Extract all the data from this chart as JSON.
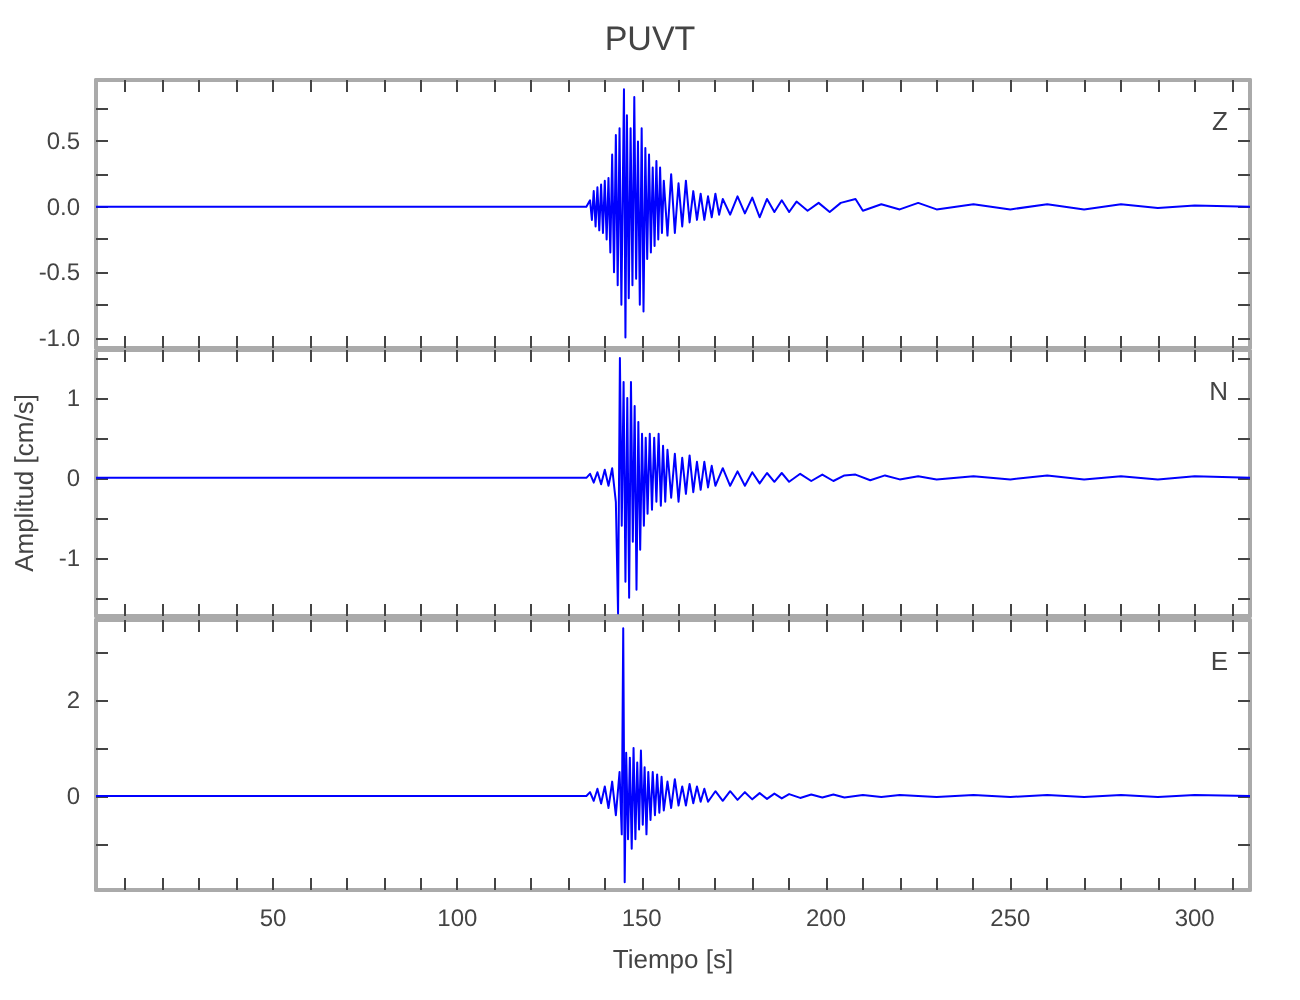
{
  "chart_data": [
    {
      "type": "line",
      "title": "PUVT",
      "annotations": [
        "Z"
      ],
      "marker": "none",
      "tick_labels": "y",
      "xlim": [
        2,
        315
      ],
      "ylim": [
        -1.08,
        0.97
      ],
      "xticks": [
        {
          "value": 10,
          "label": null
        },
        {
          "value": 20,
          "label": null
        },
        {
          "value": 30,
          "label": null
        },
        {
          "value": 40,
          "label": null
        },
        {
          "value": 50,
          "label": null
        },
        {
          "value": 60,
          "label": null
        },
        {
          "value": 70,
          "label": null
        },
        {
          "value": 80,
          "label": null
        },
        {
          "value": 90,
          "label": null
        },
        {
          "value": 100,
          "label": null
        },
        {
          "value": 110,
          "label": null
        },
        {
          "value": 120,
          "label": null
        },
        {
          "value": 130,
          "label": null
        },
        {
          "value": 140,
          "label": null
        },
        {
          "value": 150,
          "label": null
        },
        {
          "value": 160,
          "label": null
        },
        {
          "value": 170,
          "label": null
        },
        {
          "value": 180,
          "label": null
        },
        {
          "value": 190,
          "label": null
        },
        {
          "value": 200,
          "label": null
        },
        {
          "value": 210,
          "label": null
        },
        {
          "value": 220,
          "label": null
        },
        {
          "value": 230,
          "label": null
        },
        {
          "value": 240,
          "label": null
        },
        {
          "value": 250,
          "label": null
        },
        {
          "value": 260,
          "label": null
        },
        {
          "value": 270,
          "label": null
        },
        {
          "value": 280,
          "label": null
        },
        {
          "value": 290,
          "label": null
        },
        {
          "value": 300,
          "label": null
        },
        {
          "value": 310,
          "label": null
        }
      ],
      "yticks": [
        {
          "value": -1,
          "label": "-1.0"
        },
        {
          "value": -0.75,
          "label": null
        },
        {
          "value": -0.5,
          "label": "-0.5"
        },
        {
          "value": -0.25,
          "label": null
        },
        {
          "value": 0,
          "label": "0.0"
        },
        {
          "value": 0.25,
          "label": null
        },
        {
          "value": 0.5,
          "label": "0.5"
        },
        {
          "value": 0.75,
          "label": null
        }
      ],
      "series": [
        {
          "color": "#0000ff",
          "x": [
            2,
            100,
            135,
            136,
            136.5,
            137,
            137.5,
            138,
            138.5,
            139,
            139.5,
            140,
            140.5,
            141,
            141.5,
            142,
            142.5,
            143,
            143.5,
            144,
            144.5,
            145.2,
            145.6,
            146,
            146.5,
            147,
            147.5,
            148,
            148.5,
            149,
            149.5,
            150,
            150.5,
            151,
            151.5,
            152,
            152.5,
            153,
            153.5,
            154,
            154.5,
            155,
            155.5,
            156,
            157,
            158,
            159,
            160,
            161,
            162,
            163,
            164,
            165,
            166,
            167,
            168,
            169,
            170,
            171,
            172,
            174,
            176,
            178,
            180,
            182,
            184,
            186,
            188,
            190,
            192,
            195,
            198,
            201,
            204,
            208,
            210,
            215,
            220,
            225,
            230,
            240,
            250,
            260,
            270,
            280,
            290,
            300,
            315
          ],
          "values": [
            0,
            0,
            0,
            0.05,
            -0.1,
            0.12,
            -0.15,
            0.15,
            -0.18,
            0.17,
            -0.2,
            0.2,
            -0.25,
            0.22,
            -0.35,
            0.4,
            -0.5,
            0.55,
            -0.6,
            0.6,
            -0.75,
            0.9,
            -1.0,
            0.7,
            -0.7,
            0.6,
            -0.6,
            0.84,
            -0.55,
            0.5,
            -0.75,
            0.6,
            -0.8,
            0.45,
            -0.4,
            0.4,
            -0.35,
            0.3,
            -0.3,
            0.35,
            -0.25,
            0.3,
            -0.2,
            0.2,
            -0.22,
            0.25,
            -0.2,
            0.18,
            -0.15,
            0.2,
            -0.12,
            0.12,
            -0.1,
            0.1,
            -0.1,
            0.08,
            -0.08,
            0.1,
            -0.06,
            0.06,
            -0.06,
            0.08,
            -0.05,
            0.07,
            -0.08,
            0.06,
            -0.04,
            0.05,
            -0.04,
            0.04,
            -0.03,
            0.03,
            -0.04,
            0.03,
            0.06,
            -0.03,
            0.02,
            -0.02,
            0.03,
            -0.02,
            0.02,
            -0.02,
            0.02,
            -0.02,
            0.02,
            -0.01,
            0.01,
            0
          ]
        }
      ]
    },
    {
      "type": "line",
      "ylabel": "Amplitud [cm/s]",
      "annotations": [
        "N"
      ],
      "marker": "none",
      "tick_labels": "y",
      "xlim": [
        2,
        315
      ],
      "ylim": [
        -1.73,
        1.6
      ],
      "xticks": [
        {
          "value": 10,
          "label": null
        },
        {
          "value": 20,
          "label": null
        },
        {
          "value": 30,
          "label": null
        },
        {
          "value": 40,
          "label": null
        },
        {
          "value": 50,
          "label": null
        },
        {
          "value": 60,
          "label": null
        },
        {
          "value": 70,
          "label": null
        },
        {
          "value": 80,
          "label": null
        },
        {
          "value": 90,
          "label": null
        },
        {
          "value": 100,
          "label": null
        },
        {
          "value": 110,
          "label": null
        },
        {
          "value": 120,
          "label": null
        },
        {
          "value": 130,
          "label": null
        },
        {
          "value": 140,
          "label": null
        },
        {
          "value": 150,
          "label": null
        },
        {
          "value": 160,
          "label": null
        },
        {
          "value": 170,
          "label": null
        },
        {
          "value": 180,
          "label": null
        },
        {
          "value": 190,
          "label": null
        },
        {
          "value": 200,
          "label": null
        },
        {
          "value": 210,
          "label": null
        },
        {
          "value": 220,
          "label": null
        },
        {
          "value": 230,
          "label": null
        },
        {
          "value": 240,
          "label": null
        },
        {
          "value": 250,
          "label": null
        },
        {
          "value": 260,
          "label": null
        },
        {
          "value": 270,
          "label": null
        },
        {
          "value": 280,
          "label": null
        },
        {
          "value": 290,
          "label": null
        },
        {
          "value": 300,
          "label": null
        },
        {
          "value": 310,
          "label": null
        }
      ],
      "yticks": [
        {
          "value": -1.5,
          "label": null
        },
        -1,
        {
          "value": -0.5,
          "label": null
        },
        0,
        {
          "value": 0.5,
          "label": null
        },
        1,
        {
          "value": 1.5,
          "label": null
        }
      ],
      "series": [
        {
          "color": "#0000ff",
          "x": [
            2,
            100,
            135,
            136,
            137,
            138,
            139,
            140,
            141,
            142,
            143,
            143.6,
            144.1,
            144.6,
            145.1,
            145.6,
            146.1,
            146.6,
            147.1,
            147.6,
            148.1,
            148.6,
            149.1,
            149.6,
            150.1,
            150.6,
            151.1,
            151.6,
            152.2,
            152.8,
            153.4,
            154,
            154.6,
            155.2,
            155.8,
            156.4,
            157,
            158,
            159,
            160,
            161,
            162,
            163,
            164,
            165,
            166,
            167,
            168,
            169,
            170,
            172,
            174,
            176,
            178,
            180,
            182,
            184,
            186,
            188,
            190,
            193,
            196,
            199,
            202,
            205,
            208,
            212,
            216,
            220,
            225,
            230,
            240,
            250,
            260,
            270,
            280,
            290,
            300,
            315
          ],
          "values": [
            0,
            0,
            0,
            0.05,
            -0.06,
            0.07,
            -0.08,
            0.1,
            -0.1,
            0.12,
            -0.3,
            -1.7,
            1.5,
            -0.6,
            1.2,
            -1.3,
            1.0,
            -1.5,
            1.2,
            -0.8,
            0.9,
            -1.4,
            0.7,
            -0.9,
            0.55,
            -0.6,
            0.5,
            -0.45,
            0.55,
            -0.4,
            0.5,
            -0.3,
            0.55,
            -0.35,
            0.4,
            -0.3,
            0.35,
            -0.25,
            0.3,
            -0.3,
            0.25,
            -0.2,
            0.28,
            -0.18,
            0.2,
            -0.15,
            0.2,
            -0.12,
            0.15,
            -0.1,
            0.12,
            -0.1,
            0.08,
            -0.1,
            0.07,
            -0.07,
            0.06,
            -0.05,
            0.06,
            -0.05,
            0.05,
            -0.04,
            0.04,
            -0.04,
            0.03,
            0.04,
            -0.03,
            0.03,
            -0.02,
            0.02,
            -0.02,
            0.02,
            -0.02,
            0.03,
            -0.02,
            0.02,
            -0.02,
            0.02,
            0
          ]
        }
      ]
    },
    {
      "type": "line",
      "xlabel": "Tiempo [s]",
      "annotations": [
        "E"
      ],
      "marker": "none",
      "xlim": [
        2,
        315
      ],
      "ylim": [
        -1.96,
        3.67
      ],
      "xticks": [
        {
          "value": 10,
          "label": null
        },
        {
          "value": 20,
          "label": null
        },
        {
          "value": 30,
          "label": null
        },
        {
          "value": 40,
          "label": null
        },
        {
          "value": 50,
          "label": "50"
        },
        {
          "value": 60,
          "label": null
        },
        {
          "value": 70,
          "label": null
        },
        {
          "value": 80,
          "label": null
        },
        {
          "value": 90,
          "label": null
        },
        {
          "value": 100,
          "label": "100"
        },
        {
          "value": 110,
          "label": null
        },
        {
          "value": 120,
          "label": null
        },
        {
          "value": 130,
          "label": null
        },
        {
          "value": 140,
          "label": null
        },
        {
          "value": 150,
          "label": "150"
        },
        {
          "value": 160,
          "label": null
        },
        {
          "value": 170,
          "label": null
        },
        {
          "value": 180,
          "label": null
        },
        {
          "value": 190,
          "label": null
        },
        {
          "value": 200,
          "label": "200"
        },
        {
          "value": 210,
          "label": null
        },
        {
          "value": 220,
          "label": null
        },
        {
          "value": 230,
          "label": null
        },
        {
          "value": 240,
          "label": null
        },
        {
          "value": 250,
          "label": "250"
        },
        {
          "value": 260,
          "label": null
        },
        {
          "value": 270,
          "label": null
        },
        {
          "value": 280,
          "label": null
        },
        {
          "value": 290,
          "label": null
        },
        {
          "value": 300,
          "label": "300"
        },
        {
          "value": 310,
          "label": null
        }
      ],
      "yticks": [
        {
          "value": -1,
          "label": null
        },
        0,
        {
          "value": 1,
          "label": null
        },
        2,
        {
          "value": 3,
          "label": null
        }
      ],
      "series": [
        {
          "color": "#0000ff",
          "x": [
            2,
            100,
            135,
            136,
            137,
            138,
            139,
            140,
            141,
            142,
            143,
            144,
            144.6,
            145,
            145.4,
            145.8,
            146.3,
            146.8,
            147.3,
            147.8,
            148.3,
            148.8,
            149.3,
            149.8,
            150.3,
            150.8,
            151.3,
            151.8,
            152.4,
            153,
            153.6,
            154.2,
            154.8,
            155.4,
            156,
            157,
            158,
            159,
            160,
            161,
            162,
            163,
            164,
            165,
            166,
            167,
            168,
            170,
            172,
            174,
            176,
            178,
            180,
            182,
            184,
            186,
            188,
            190,
            193,
            196,
            199,
            202,
            205,
            210,
            215,
            220,
            230,
            240,
            250,
            260,
            270,
            280,
            290,
            300,
            315
          ],
          "values": [
            0,
            0,
            0,
            0.08,
            -0.1,
            0.15,
            -0.15,
            0.2,
            -0.25,
            0.3,
            -0.4,
            0.5,
            -0.8,
            3.5,
            -1.8,
            0.9,
            -0.9,
            0.8,
            -1.1,
            1.0,
            -0.9,
            0.7,
            -0.7,
            0.95,
            -0.6,
            0.6,
            -0.8,
            0.5,
            -0.5,
            0.5,
            -0.4,
            0.45,
            -0.35,
            0.4,
            -0.3,
            0.3,
            -0.25,
            0.35,
            -0.2,
            0.2,
            -0.2,
            0.25,
            -0.15,
            0.2,
            -0.12,
            0.15,
            -0.12,
            0.1,
            -0.1,
            0.1,
            -0.08,
            0.08,
            -0.07,
            0.06,
            -0.06,
            0.05,
            -0.05,
            0.04,
            -0.04,
            0.03,
            -0.03,
            0.03,
            -0.03,
            0.02,
            -0.02,
            0.02,
            -0.02,
            0.02,
            -0.02,
            0.02,
            -0.02,
            0.02,
            -0.02,
            0.02,
            0
          ]
        }
      ]
    }
  ]
}
